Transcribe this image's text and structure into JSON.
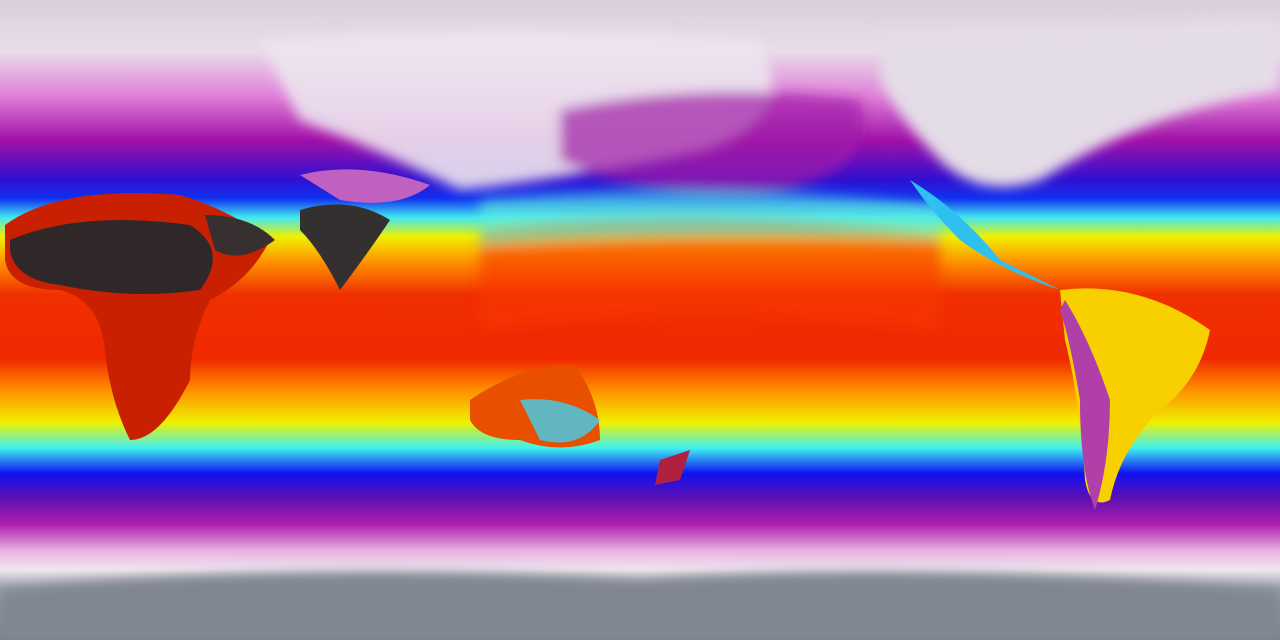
{
  "map": {
    "projection": "equirectangular",
    "variable": "temperature",
    "palette": {
      "polar_ice": "#8a909c",
      "cold_white": "#ece0ec",
      "pink": "#e070d8",
      "magenta": "#a010a0",
      "purple": "#6010b0",
      "blue": "#1010f0",
      "cyan": "#40f0f0",
      "yellow": "#f8f000",
      "orange": "#ff8000",
      "red": "#f02000",
      "hot_dark": "#302828"
    }
  }
}
